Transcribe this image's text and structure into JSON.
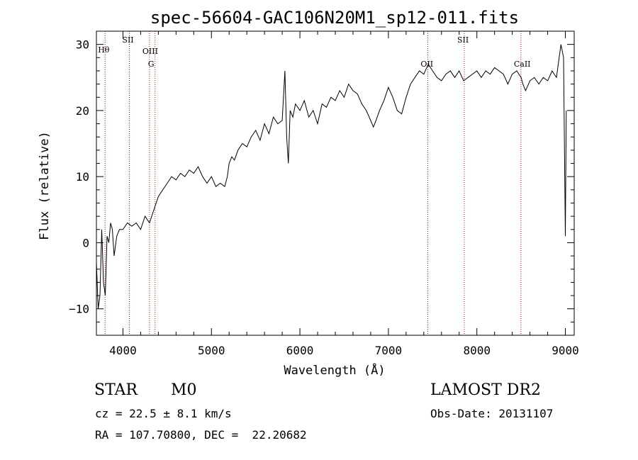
{
  "chart_data": {
    "type": "line",
    "title": "spec-56604-GAC106N20M1_sp12-011.fits",
    "xlabel": "Wavelength (Å)",
    "ylabel": "Flux (relative)",
    "xlim": [
      3700,
      9100
    ],
    "ylim": [
      -14,
      32
    ],
    "x_ticks": [
      4000,
      5000,
      6000,
      7000,
      8000,
      9000
    ],
    "y_ticks": [
      -10,
      0,
      10,
      20,
      30
    ],
    "x_tick_labels": [
      "4000",
      "5000",
      "6000",
      "7000",
      "8000",
      "9000"
    ],
    "y_tick_labels": [
      "−10",
      "0",
      "10",
      "20",
      "30"
    ],
    "series": [
      {
        "name": "spectrum",
        "x": [
          3700,
          3720,
          3740,
          3760,
          3780,
          3800,
          3820,
          3840,
          3860,
          3880,
          3900,
          3930,
          3960,
          4000,
          4050,
          4100,
          4150,
          4200,
          4250,
          4300,
          4350,
          4400,
          4450,
          4500,
          4550,
          4600,
          4650,
          4700,
          4750,
          4800,
          4850,
          4900,
          4950,
          5000,
          5050,
          5100,
          5150,
          5180,
          5200,
          5230,
          5260,
          5300,
          5350,
          5400,
          5450,
          5500,
          5550,
          5600,
          5650,
          5700,
          5750,
          5800,
          5830,
          5850,
          5870,
          5890,
          5920,
          5950,
          6000,
          6050,
          6100,
          6150,
          6200,
          6250,
          6300,
          6350,
          6400,
          6450,
          6500,
          6550,
          6600,
          6650,
          6700,
          6750,
          6800,
          6830,
          6860,
          6900,
          6950,
          7000,
          7050,
          7100,
          7150,
          7200,
          7250,
          7300,
          7350,
          7400,
          7450,
          7500,
          7550,
          7600,
          7650,
          7700,
          7750,
          7800,
          7850,
          7900,
          7950,
          8000,
          8050,
          8100,
          8150,
          8200,
          8250,
          8300,
          8350,
          8400,
          8450,
          8500,
          8520,
          8550,
          8600,
          8650,
          8700,
          8750,
          8800,
          8850,
          8900,
          8950,
          8980,
          9000,
          9010
        ],
        "values": [
          -3,
          -10,
          -8,
          2,
          -6,
          -8,
          1,
          0,
          3,
          2,
          -2,
          1,
          2,
          2,
          3,
          2.5,
          3,
          2,
          4,
          3,
          5,
          7,
          8,
          9,
          10,
          9.5,
          10.5,
          10,
          11,
          10.5,
          11.5,
          10,
          9,
          10,
          8.5,
          9,
          8.5,
          10,
          12,
          13,
          12.5,
          14,
          15,
          14.5,
          16,
          17,
          15.5,
          18,
          16.5,
          19,
          18,
          18.5,
          26,
          16,
          12,
          20,
          19,
          21,
          20,
          21.5,
          19,
          20,
          18,
          21,
          20.5,
          22,
          21.5,
          23,
          22,
          24,
          23,
          22.5,
          21,
          20,
          18.5,
          17.5,
          18.5,
          20,
          21.5,
          23.5,
          22,
          20,
          19.5,
          22,
          24,
          25,
          26,
          25.5,
          27,
          26,
          25,
          24.5,
          25.5,
          26,
          25,
          26,
          24.5,
          25,
          25.5,
          26,
          25,
          26,
          25.5,
          26.5,
          26,
          25.5,
          24,
          25.5,
          26,
          25,
          24,
          23,
          24.5,
          25,
          24,
          25,
          24.5,
          26,
          25,
          30,
          28,
          1,
          20
        ]
      }
    ],
    "lines": [
      {
        "label": "Hθ",
        "x": 3798
      },
      {
        "label": "SII",
        "x": 4072
      },
      {
        "label": "OIII",
        "x": 4300
      },
      {
        "label": "G",
        "x": 4363
      },
      {
        "label": "OII",
        "x": 7445
      },
      {
        "label": "SII",
        "x": 7858
      },
      {
        "label": "CaII",
        "x": 8498
      }
    ]
  },
  "info": {
    "class_label": "STAR",
    "subclass": "M0",
    "survey": "LAMOST DR2",
    "cz": "cz = 22.5 ± 8.1 km/s",
    "obs_date": "Obs-Date: 20131107",
    "coords": "RA = 107.70800, DEC =  22.20682"
  },
  "colors": {
    "line": "#000000",
    "marker": "#b01010"
  }
}
